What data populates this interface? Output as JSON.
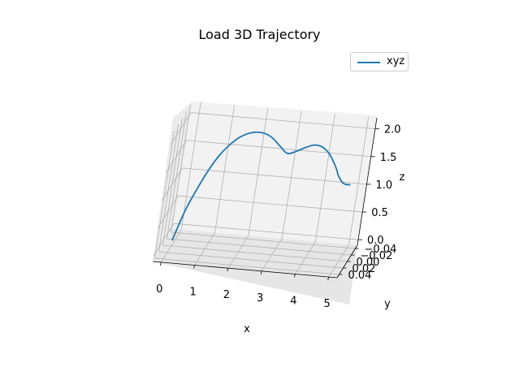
{
  "chart_data": {
    "type": "line",
    "projection": "3d",
    "title": "Load 3D Trajectory",
    "xlabel": "x",
    "ylabel": "y",
    "zlabel": "z",
    "xticks": [
      "0",
      "1",
      "2",
      "3",
      "4",
      "5"
    ],
    "yticks": [
      "0.04",
      "0.02",
      "0.00",
      "−0.02",
      "−0.04"
    ],
    "zticks": [
      "0.0",
      "0.5",
      "1.0",
      "1.5",
      "2.0"
    ],
    "xlim": [
      -0.25,
      5.25
    ],
    "ylim": [
      -0.05,
      0.05
    ],
    "zlim": [
      -0.1,
      2.2
    ],
    "grid": true,
    "legend_position": "top-right",
    "series": [
      {
        "name": "xyz",
        "color": "#1f77b4",
        "x": [
          0.0,
          0.25,
          0.5,
          0.75,
          1.0,
          1.25,
          1.5,
          1.75,
          2.0,
          2.25,
          2.5,
          2.75,
          3.0,
          3.25,
          3.5,
          3.75,
          4.0,
          4.25,
          4.5,
          4.6,
          4.75,
          4.85,
          5.0
        ],
        "y": [
          0,
          0,
          0,
          0,
          0,
          0,
          0,
          0,
          0,
          0,
          0,
          0,
          0,
          0,
          0,
          0,
          0,
          0,
          0,
          0,
          0,
          0,
          0
        ],
        "z": [
          0.0,
          0.55,
          0.95,
          1.3,
          1.58,
          1.78,
          1.93,
          2.02,
          2.06,
          2.05,
          1.98,
          1.85,
          1.73,
          1.78,
          1.86,
          1.92,
          1.9,
          1.78,
          1.55,
          1.42,
          1.3,
          1.27,
          1.27
        ]
      }
    ]
  }
}
